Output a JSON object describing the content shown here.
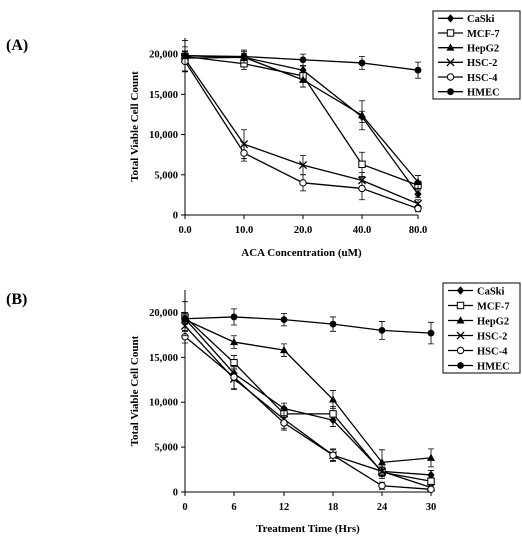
{
  "chart_data": [
    {
      "panel_label": "(A)",
      "type": "line",
      "xlabel": "ACA Concentration (uM)",
      "ylabel": "Total Viable Cell Count",
      "categories": [
        "0.0",
        "10.0",
        "20.0",
        "40.0",
        "80.0"
      ],
      "y_ticks": [
        "0",
        "5,000",
        "10,000",
        "15,000",
        "20,000"
      ],
      "ylim": [
        0,
        22000
      ],
      "grid": false,
      "legend_position": "top-right-outside",
      "series": [
        {
          "name": "CaSki",
          "marker": "diamond-filled",
          "values": [
            19500,
            19600,
            18000,
            12200,
            2600
          ],
          "errors": [
            500,
            500,
            500,
            700,
            400
          ]
        },
        {
          "name": "MCF-7",
          "marker": "square-open",
          "values": [
            19700,
            18800,
            17300,
            6300,
            3700
          ],
          "errors": [
            600,
            700,
            700,
            1500,
            500
          ]
        },
        {
          "name": "HepG2",
          "marker": "triangle-filled",
          "values": [
            19800,
            19600,
            16800,
            12400,
            4100
          ],
          "errors": [
            500,
            700,
            900,
            1800,
            800
          ]
        },
        {
          "name": "HSC-2",
          "marker": "x",
          "values": [
            19400,
            8800,
            6200,
            4300,
            1400
          ],
          "errors": [
            1500,
            1800,
            1200,
            1000,
            500
          ]
        },
        {
          "name": "HSC-4",
          "marker": "circle-open",
          "values": [
            19100,
            7700,
            4000,
            3300,
            800
          ],
          "errors": [
            1300,
            1000,
            1000,
            1400,
            400
          ]
        },
        {
          "name": "HMEC",
          "marker": "circle-filled",
          "values": [
            19800,
            19700,
            19300,
            18900,
            18000
          ],
          "errors": [
            1900,
            800,
            700,
            800,
            1000
          ]
        }
      ]
    },
    {
      "panel_label": "(B)",
      "type": "line",
      "xlabel": "Treatment Time (Hrs)",
      "ylabel": "Total Viable Cell Count",
      "categories": [
        "0",
        "6",
        "12",
        "18",
        "24",
        "30"
      ],
      "y_ticks": [
        "0",
        "5,000",
        "10,000",
        "15,000",
        "20,000"
      ],
      "ylim": [
        0,
        22500
      ],
      "grid": false,
      "legend_position": "top-right-outside",
      "series": [
        {
          "name": "CaSki",
          "marker": "diamond-filled",
          "values": [
            19300,
            13200,
            9300,
            8000,
            2300,
            1900
          ],
          "errors": [
            500,
            800,
            600,
            700,
            500,
            500
          ]
        },
        {
          "name": "MCF-7",
          "marker": "square-open",
          "values": [
            19500,
            14400,
            8700,
            8700,
            2200,
            1200
          ],
          "errors": [
            500,
            800,
            700,
            800,
            500,
            400
          ]
        },
        {
          "name": "HepG2",
          "marker": "triangle-filled",
          "values": [
            19200,
            16700,
            15800,
            10300,
            3300,
            3800
          ],
          "errors": [
            500,
            700,
            700,
            1000,
            1400,
            1000
          ]
        },
        {
          "name": "HSC-2",
          "marker": "x",
          "values": [
            18500,
            12600,
            8100,
            4100,
            2300,
            500
          ],
          "errors": [
            600,
            1200,
            1000,
            600,
            800,
            300
          ]
        },
        {
          "name": "HSC-4",
          "marker": "circle-open",
          "values": [
            17300,
            12800,
            7700,
            4100,
            700,
            300
          ],
          "errors": [
            700,
            1300,
            800,
            700,
            400,
            200
          ]
        },
        {
          "name": "HMEC",
          "marker": "circle-filled",
          "values": [
            19300,
            19500,
            19200,
            18700,
            18000,
            17700
          ],
          "errors": [
            1900,
            900,
            700,
            800,
            1000,
            1200
          ]
        }
      ]
    }
  ]
}
